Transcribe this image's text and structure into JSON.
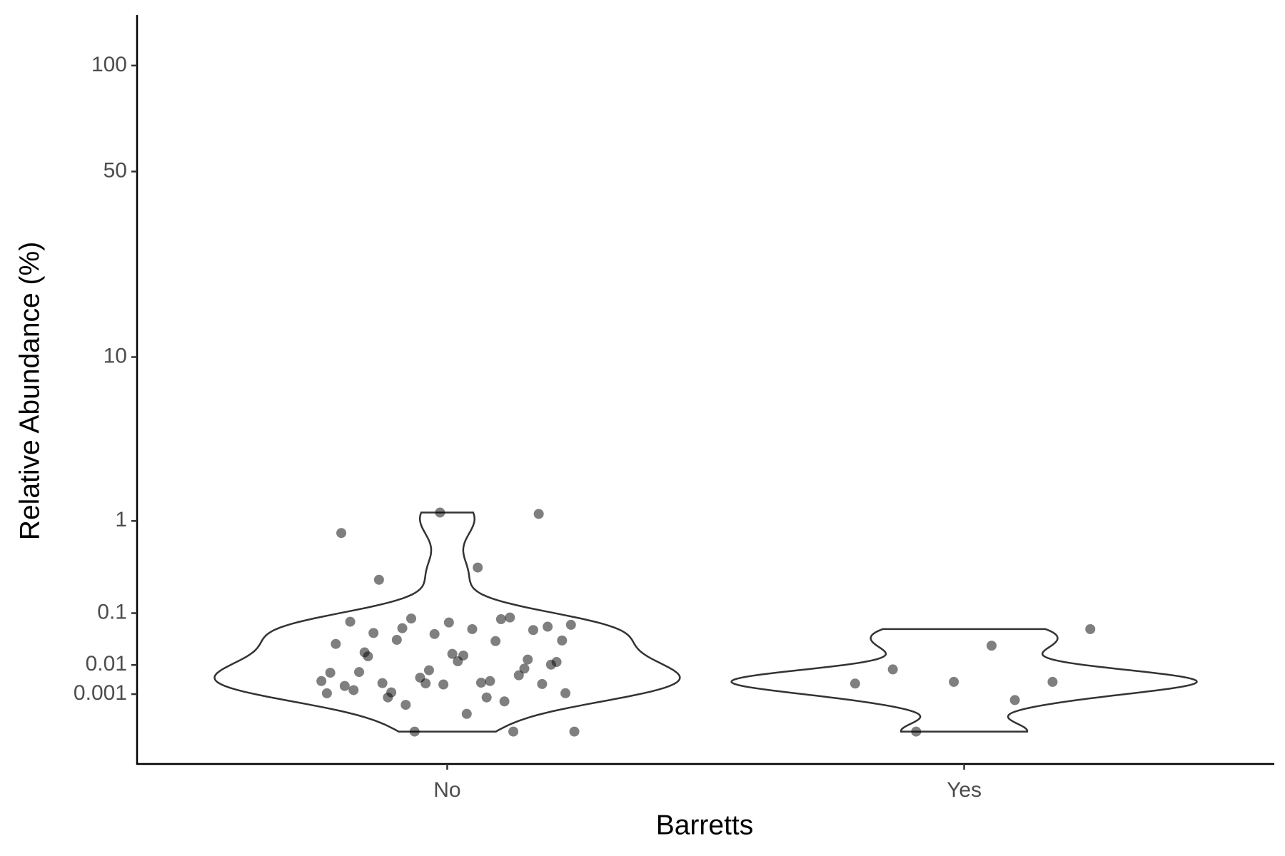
{
  "chart_data": {
    "type": "violin",
    "x_label": "Barretts",
    "y_label": "Relative Abundance (%)",
    "categories": [
      "No",
      "Yes"
    ],
    "values": [
      [
        0.368,
        0.27,
        1.14,
        1.17,
        0.79,
        0.081,
        0.058,
        0.035,
        0.017,
        0.02,
        0.008,
        0.00274,
        0.00109,
        0.00069,
        0.00069,
        0.0615,
        0.072,
        0.074,
        0.086,
        0.083,
        0.066,
        0.056,
        0.048,
        0.054,
        0.046,
        0.03,
        0.034,
        0.036,
        0.0119,
        0.0124,
        0.0064,
        0.0051,
        0.0043,
        0.0033,
        0.0029,
        0.0028,
        0.0026,
        0.0025,
        0.0022,
        0.00042,
        0.00026,
        0.0011,
        5e-05,
        0.0163,
        0.0137,
        0.0072,
        0.0061,
        0.0033,
        0.0012,
        0.0102,
        0.0185,
        0.0015,
        0,
        0,
        0
      ],
      [
        0.056,
        0.0277,
        0.0076,
        0.0031,
        0.0031,
        0.0027,
        0.0005,
        0
      ]
    ],
    "yscale": "signed-power",
    "yscale_exponent": 0.25,
    "ylim": [
      -0.00056,
      134
    ],
    "yticks": [
      100,
      50,
      10,
      1,
      0.1,
      0.01,
      0.001
    ],
    "point_color": "#000000",
    "point_opacity": 0.5,
    "violin_color": "#333333"
  }
}
